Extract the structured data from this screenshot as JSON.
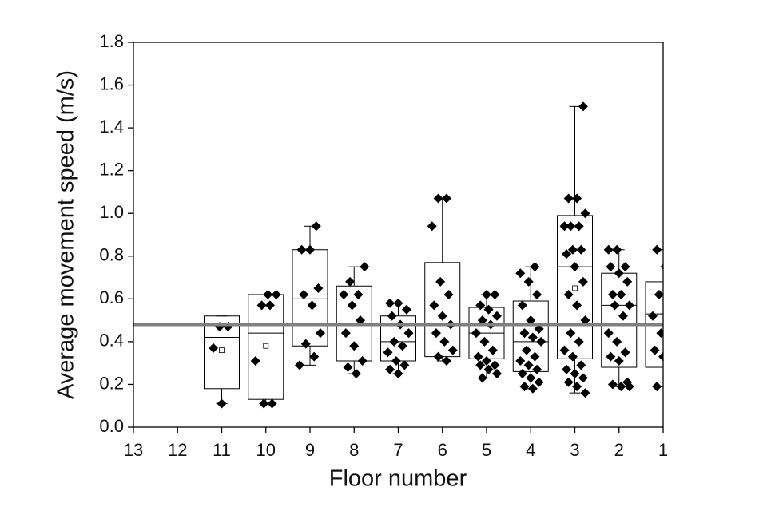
{
  "chart_data": {
    "type": "box",
    "x_label": "Floor number",
    "y_label": "Average movement speed (m/s)",
    "categories": [
      "13",
      "12",
      "11",
      "10",
      "9",
      "8",
      "7",
      "6",
      "5",
      "4",
      "3",
      "2",
      "1"
    ],
    "ylim": [
      0,
      1.8
    ],
    "yticks": [
      {
        "value": 0,
        "label": "0.0"
      },
      0.2,
      0.4,
      0.6,
      0.8,
      {
        "value": 1,
        "label": "1.0"
      },
      1.2,
      1.4,
      1.6,
      1.8
    ],
    "reference_line": 0.48,
    "reference_color": "#808080",
    "box_color": "#000000",
    "point_color": "#000000",
    "boxes": [
      null,
      null,
      {
        "q1": 0.18,
        "median": 0.42,
        "q3": 0.52,
        "mean": 0.36,
        "whisker_low": 0.11,
        "whisker_high": 0.52,
        "points": [
          0.47,
          0.47,
          0.37,
          0.11
        ]
      },
      {
        "q1": 0.13,
        "median": 0.44,
        "q3": 0.62,
        "mean": 0.38,
        "whisker_low": 0.11,
        "whisker_high": 0.62,
        "points": [
          0.62,
          0.62,
          0.57,
          0.57,
          0.31,
          0.11,
          0.11
        ]
      },
      {
        "q1": 0.38,
        "median": 0.6,
        "q3": 0.83,
        "whisker_low": 0.29,
        "whisker_high": 0.94,
        "points": [
          0.94,
          0.83,
          0.83,
          0.65,
          0.62,
          0.57,
          0.44,
          0.39,
          0.33,
          0.29
        ]
      },
      {
        "q1": 0.31,
        "median": 0.48,
        "q3": 0.66,
        "whisker_low": 0.25,
        "whisker_high": 0.75,
        "points": [
          0.75,
          0.68,
          0.62,
          0.62,
          0.57,
          0.5,
          0.44,
          0.38,
          0.31,
          0.28,
          0.25
        ]
      },
      {
        "q1": 0.31,
        "median": 0.4,
        "q3": 0.52,
        "whisker_low": 0.25,
        "whisker_high": 0.58,
        "points": [
          0.58,
          0.58,
          0.55,
          0.52,
          0.48,
          0.44,
          0.4,
          0.38,
          0.35,
          0.31,
          0.29,
          0.27,
          0.25
        ]
      },
      {
        "q1": 0.33,
        "median": 0.48,
        "q3": 0.77,
        "whisker_low": 0.31,
        "whisker_high": 1.07,
        "points": [
          1.07,
          1.07,
          0.94,
          0.68,
          0.62,
          0.57,
          0.52,
          0.48,
          0.44,
          0.4,
          0.36,
          0.33,
          0.31
        ]
      },
      {
        "q1": 0.32,
        "median": 0.44,
        "q3": 0.56,
        "whisker_low": 0.23,
        "whisker_high": 0.62,
        "points": [
          0.62,
          0.62,
          0.57,
          0.55,
          0.52,
          0.5,
          0.48,
          0.44,
          0.4,
          0.36,
          0.33,
          0.31,
          0.29,
          0.29,
          0.27,
          0.25,
          0.23
        ]
      },
      {
        "q1": 0.26,
        "median": 0.4,
        "q3": 0.59,
        "whisker_low": 0.18,
        "whisker_high": 0.75,
        "points": [
          0.75,
          0.72,
          0.68,
          0.62,
          0.57,
          0.5,
          0.46,
          0.44,
          0.42,
          0.4,
          0.36,
          0.33,
          0.31,
          0.29,
          0.27,
          0.25,
          0.23,
          0.21,
          0.19,
          0.18
        ]
      },
      {
        "q1": 0.32,
        "median": 0.75,
        "q3": 0.99,
        "mean": 0.65,
        "whisker_low": 0.16,
        "whisker_high": 1.5,
        "points": [
          1.5,
          1.07,
          1.07,
          1.0,
          0.94,
          0.94,
          0.94,
          0.83,
          0.83,
          0.81,
          0.75,
          0.68,
          0.62,
          0.57,
          0.5,
          0.44,
          0.4,
          0.36,
          0.33,
          0.29,
          0.27,
          0.25,
          0.23,
          0.21,
          0.19,
          0.16
        ]
      },
      {
        "q1": 0.28,
        "median": 0.57,
        "q3": 0.72,
        "whisker_low": 0.19,
        "whisker_high": 0.83,
        "points": [
          0.83,
          0.83,
          0.75,
          0.75,
          0.72,
          0.68,
          0.62,
          0.62,
          0.57,
          0.57,
          0.52,
          0.44,
          0.4,
          0.35,
          0.33,
          0.31,
          0.21,
          0.2,
          0.19,
          0.19
        ]
      },
      {
        "q1": 0.28,
        "median": 0.53,
        "q3": 0.68,
        "whisker_low": 0.19,
        "whisker_high": 0.83,
        "points": [
          0.83,
          0.75,
          0.68,
          0.62,
          0.57,
          0.52,
          0.44,
          0.4,
          0.36,
          0.33,
          0.21,
          0.19
        ]
      }
    ]
  }
}
